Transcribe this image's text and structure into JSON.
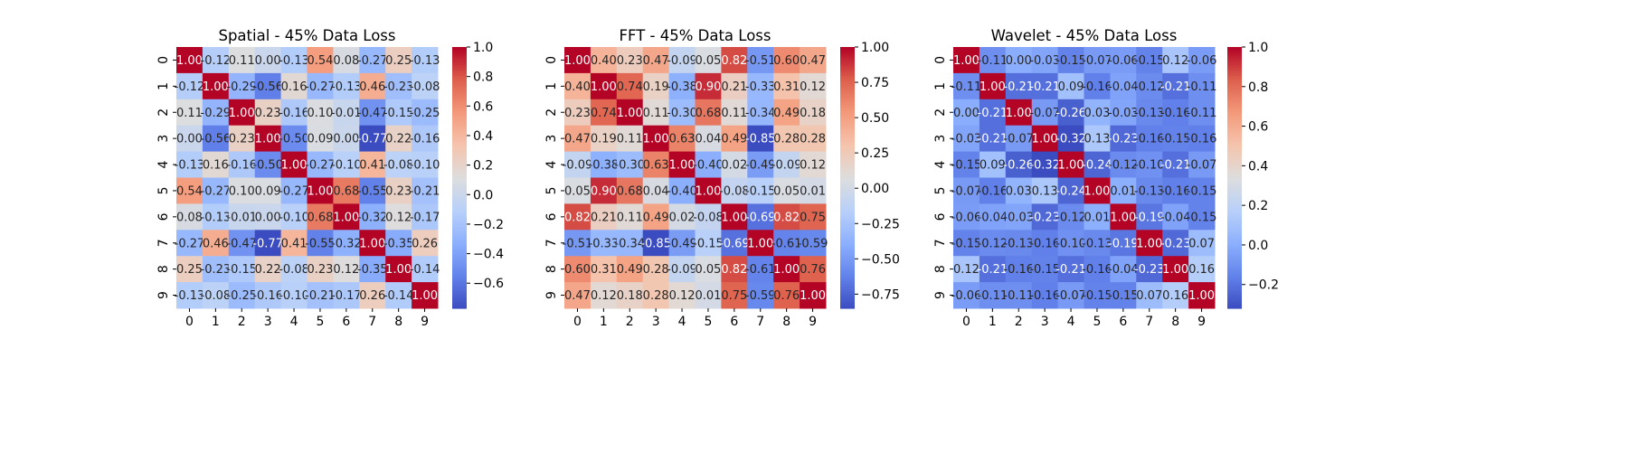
{
  "chart_data": [
    {
      "type": "heatmap",
      "title": "Spatial - 45% Data Loss",
      "x_ticks": [
        "0",
        "1",
        "2",
        "3",
        "4",
        "5",
        "6",
        "7",
        "8",
        "9"
      ],
      "y_ticks": [
        "0",
        "1",
        "2",
        "3",
        "4",
        "5",
        "6",
        "7",
        "8",
        "9"
      ],
      "colormap": "coolwarm",
      "vmin": -0.77,
      "vmax": 1.0,
      "colorbar_ticks": [
        -0.6,
        -0.4,
        -0.2,
        0.0,
        0.2,
        0.4,
        0.6,
        0.8,
        1.0
      ],
      "colorbar_tick_labels": [
        "−0.6",
        "−0.4",
        "−0.2",
        "0.0",
        "0.2",
        "0.4",
        "0.6",
        "0.8",
        "1.0"
      ],
      "matrix": [
        [
          1.0,
          -0.12,
          0.11,
          -0.0,
          -0.13,
          0.54,
          0.08,
          -0.27,
          0.25,
          -0.13
        ],
        [
          -0.12,
          1.0,
          -0.29,
          -0.56,
          0.16,
          -0.27,
          -0.13,
          0.46,
          -0.23,
          -0.08
        ],
        [
          0.11,
          -0.29,
          1.0,
          0.23,
          -0.16,
          0.1,
          -0.01,
          -0.47,
          -0.15,
          -0.25
        ],
        [
          -0.0,
          -0.56,
          0.23,
          1.0,
          -0.5,
          0.09,
          0.0,
          -0.77,
          0.22,
          -0.16
        ],
        [
          -0.13,
          0.16,
          -0.16,
          -0.5,
          1.0,
          -0.27,
          -0.1,
          0.41,
          -0.08,
          -0.1
        ],
        [
          0.54,
          -0.27,
          0.1,
          0.09,
          -0.27,
          1.0,
          0.68,
          -0.55,
          0.23,
          -0.21
        ],
        [
          0.08,
          -0.13,
          -0.01,
          0.0,
          -0.1,
          0.68,
          1.0,
          -0.32,
          0.12,
          -0.17
        ],
        [
          -0.27,
          0.46,
          -0.47,
          -0.77,
          0.41,
          -0.55,
          -0.32,
          1.0,
          -0.35,
          0.26
        ],
        [
          0.25,
          -0.23,
          -0.15,
          0.22,
          -0.08,
          0.23,
          0.12,
          -0.35,
          1.0,
          -0.14
        ],
        [
          -0.13,
          -0.08,
          -0.25,
          -0.16,
          -0.1,
          -0.21,
          -0.17,
          0.26,
          -0.14,
          1.0
        ]
      ]
    },
    {
      "type": "heatmap",
      "title": "FFT - 45% Data Loss",
      "x_ticks": [
        "0",
        "1",
        "2",
        "3",
        "4",
        "5",
        "6",
        "7",
        "8",
        "9"
      ],
      "y_ticks": [
        "0",
        "1",
        "2",
        "3",
        "4",
        "5",
        "6",
        "7",
        "8",
        "9"
      ],
      "colormap": "coolwarm",
      "vmin": -0.85,
      "vmax": 1.0,
      "colorbar_ticks": [
        -0.75,
        -0.5,
        -0.25,
        0.0,
        0.25,
        0.5,
        0.75,
        1.0
      ],
      "colorbar_tick_labels": [
        "−0.75",
        "−0.50",
        "−0.25",
        "0.00",
        "0.25",
        "0.50",
        "0.75",
        "1.00"
      ],
      "matrix": [
        [
          1.0,
          0.4,
          0.23,
          0.47,
          -0.09,
          0.05,
          0.82,
          -0.51,
          0.6,
          0.47
        ],
        [
          0.4,
          1.0,
          0.74,
          0.19,
          -0.38,
          0.9,
          0.21,
          -0.33,
          0.31,
          0.12
        ],
        [
          0.23,
          0.74,
          1.0,
          0.11,
          -0.3,
          0.68,
          0.11,
          -0.34,
          0.49,
          0.18
        ],
        [
          0.47,
          0.19,
          0.11,
          1.0,
          0.63,
          0.04,
          0.49,
          -0.85,
          0.28,
          0.28
        ],
        [
          -0.09,
          -0.38,
          -0.3,
          0.63,
          1.0,
          -0.4,
          0.02,
          -0.49,
          -0.09,
          0.12
        ],
        [
          0.05,
          0.9,
          0.68,
          0.04,
          -0.4,
          1.0,
          -0.08,
          -0.15,
          0.05,
          0.01
        ],
        [
          0.82,
          0.21,
          0.11,
          0.49,
          0.02,
          -0.08,
          1.0,
          -0.69,
          0.82,
          0.75
        ],
        [
          -0.51,
          -0.33,
          -0.34,
          -0.85,
          -0.49,
          -0.15,
          -0.69,
          1.0,
          -0.61,
          -0.59
        ],
        [
          0.6,
          0.31,
          0.49,
          0.28,
          -0.09,
          0.05,
          0.82,
          -0.61,
          1.0,
          0.76
        ],
        [
          0.47,
          0.12,
          0.18,
          0.28,
          0.12,
          0.01,
          0.75,
          -0.59,
          0.76,
          1.0
        ]
      ]
    },
    {
      "type": "heatmap",
      "title": "Wavelet - 45% Data Loss",
      "x_ticks": [
        "0",
        "1",
        "2",
        "3",
        "4",
        "5",
        "6",
        "7",
        "8",
        "9"
      ],
      "y_ticks": [
        "0",
        "1",
        "2",
        "3",
        "4",
        "5",
        "6",
        "7",
        "8",
        "9"
      ],
      "colormap": "coolwarm",
      "vmin": -0.32,
      "vmax": 1.0,
      "colorbar_ticks": [
        -0.2,
        0.0,
        0.2,
        0.4,
        0.6,
        0.8,
        1.0
      ],
      "colorbar_tick_labels": [
        "−0.2",
        "0.0",
        "0.2",
        "0.4",
        "0.6",
        "0.8",
        "1.0"
      ],
      "matrix": [
        [
          1.0,
          -0.11,
          -0.0,
          -0.03,
          -0.15,
          -0.07,
          -0.06,
          -0.15,
          0.12,
          -0.06
        ],
        [
          -0.11,
          1.0,
          -0.21,
          -0.21,
          0.09,
          -0.16,
          -0.04,
          -0.12,
          -0.21,
          -0.11
        ],
        [
          -0.0,
          -0.21,
          1.0,
          -0.07,
          -0.26,
          0.03,
          -0.03,
          -0.13,
          -0.16,
          -0.11
        ],
        [
          -0.03,
          -0.21,
          -0.07,
          1.0,
          -0.32,
          0.13,
          -0.23,
          -0.16,
          -0.15,
          -0.16
        ],
        [
          -0.15,
          0.09,
          -0.26,
          -0.32,
          1.0,
          -0.24,
          -0.12,
          -0.1,
          -0.21,
          -0.07
        ],
        [
          -0.07,
          -0.16,
          0.03,
          0.13,
          -0.24,
          1.0,
          0.01,
          -0.13,
          -0.16,
          -0.15
        ],
        [
          -0.06,
          -0.04,
          -0.03,
          -0.23,
          -0.12,
          0.01,
          1.0,
          -0.19,
          -0.04,
          -0.15
        ],
        [
          -0.15,
          -0.12,
          -0.13,
          -0.16,
          -0.1,
          -0.13,
          -0.19,
          1.0,
          -0.23,
          0.07
        ],
        [
          0.12,
          -0.21,
          -0.16,
          -0.15,
          -0.21,
          -0.16,
          -0.04,
          -0.23,
          1.0,
          0.16
        ],
        [
          -0.06,
          -0.11,
          -0.11,
          -0.16,
          -0.07,
          -0.15,
          -0.15,
          0.07,
          0.16,
          1.0
        ]
      ]
    }
  ]
}
